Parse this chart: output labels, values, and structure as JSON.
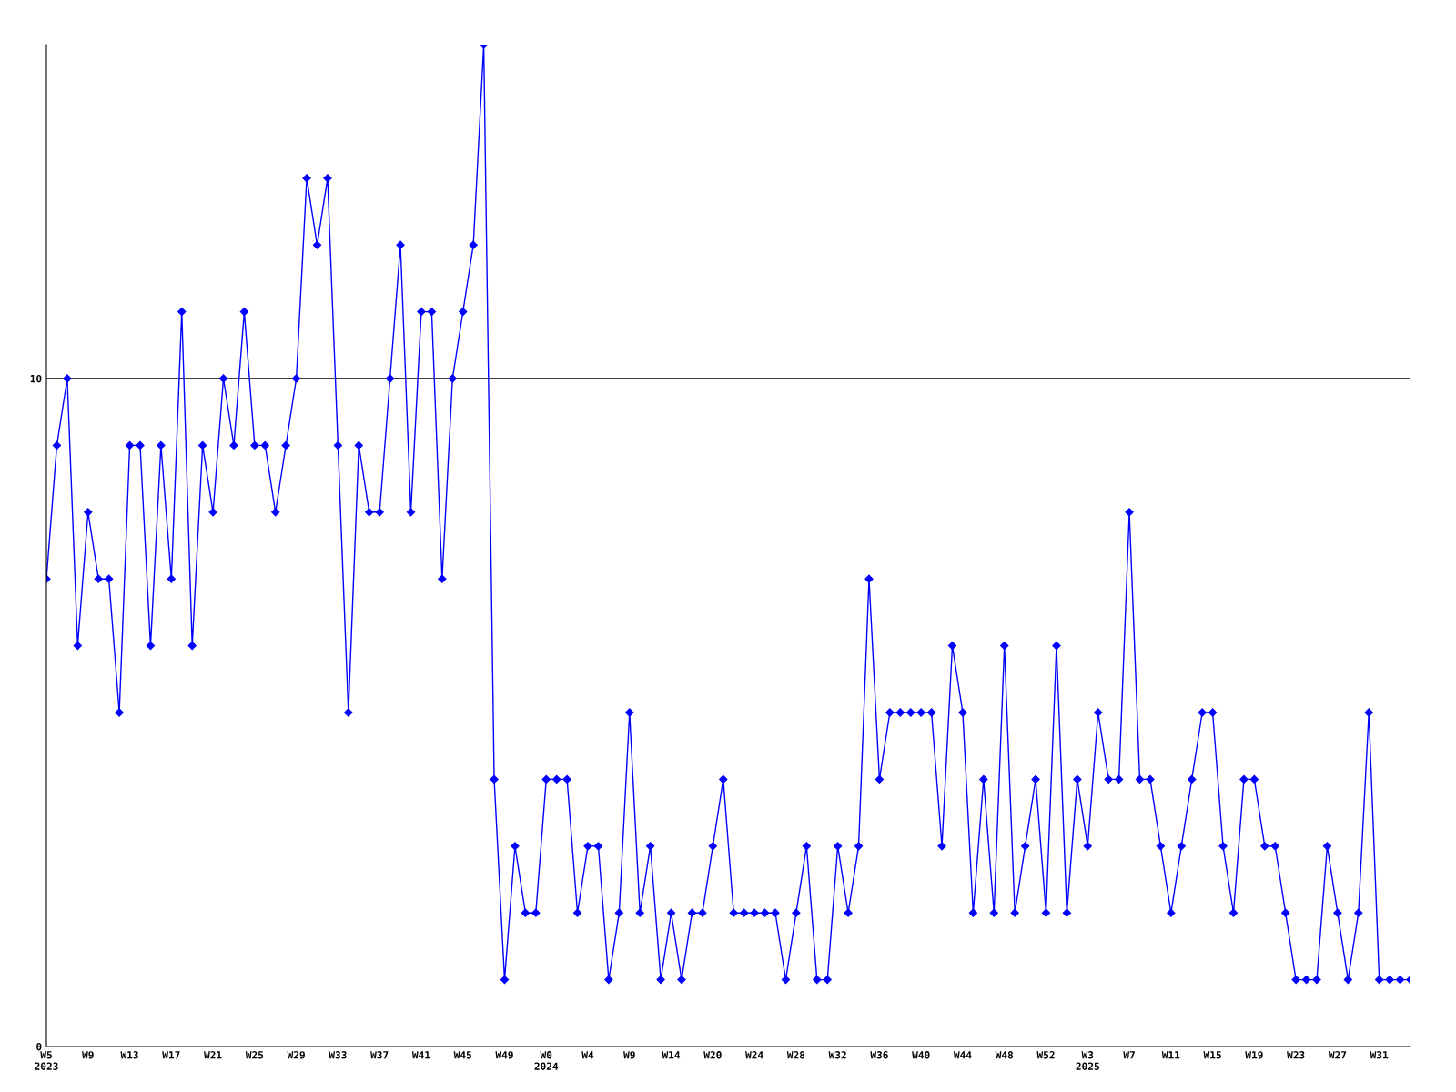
{
  "chart_data": {
    "type": "line",
    "categories": [
      "W5\n2023",
      null,
      null,
      null,
      "W9",
      null,
      null,
      null,
      "W13",
      null,
      null,
      null,
      "W17",
      null,
      null,
      null,
      "W21",
      null,
      null,
      null,
      "W25",
      null,
      null,
      null,
      "W29",
      null,
      null,
      null,
      "W33",
      null,
      null,
      null,
      "W37",
      null,
      null,
      null,
      "W41",
      null,
      null,
      null,
      "W45",
      null,
      null,
      null,
      "W49",
      null,
      null,
      null,
      "W0\n2024",
      null,
      null,
      null,
      "W4",
      null,
      null,
      null,
      "W9",
      null,
      null,
      null,
      "W14",
      null,
      null,
      null,
      "W20",
      null,
      null,
      null,
      "W24",
      null,
      null,
      null,
      "W28",
      null,
      null,
      null,
      "W32",
      null,
      null,
      null,
      "W36",
      null,
      null,
      null,
      "W40",
      null,
      null,
      null,
      "W44",
      null,
      null,
      null,
      "W48",
      null,
      null,
      null,
      "W52",
      null,
      null,
      null,
      "W3\n2025",
      null,
      null,
      null,
      "W7",
      null,
      null,
      null,
      "W11",
      null,
      null,
      null,
      "W15",
      null,
      null,
      null,
      "W19",
      null,
      null,
      null,
      "W23",
      null,
      null,
      null,
      "W27",
      null,
      null,
      null,
      "W31",
      null,
      null,
      null
    ],
    "series": [
      {
        "color": "#0000ff",
        "values": [
          7,
          9,
          10,
          6,
          8,
          7,
          7,
          5,
          9,
          9,
          6,
          9,
          7,
          11,
          6,
          9,
          8,
          10,
          9,
          11,
          9,
          9,
          8,
          9,
          10,
          13,
          12,
          13,
          9,
          5,
          9,
          8,
          8,
          10,
          12,
          8,
          11,
          11,
          7,
          10,
          11,
          12,
          15,
          4,
          1,
          3,
          2,
          2,
          4,
          4,
          4,
          2,
          3,
          3,
          1,
          2,
          5,
          2,
          3,
          1,
          2,
          1,
          2,
          2,
          3,
          4,
          2,
          2,
          2,
          2,
          2,
          1,
          2,
          3,
          1,
          1,
          3,
          2,
          3,
          7,
          4,
          5,
          5,
          5,
          5,
          5,
          3,
          6,
          5,
          2,
          4,
          2,
          6,
          2,
          3,
          4,
          2,
          6,
          2,
          4,
          3,
          5,
          4,
          4,
          8,
          4,
          4,
          3,
          2,
          3,
          4,
          5,
          5,
          3,
          2,
          4,
          4,
          3,
          3,
          2,
          1,
          1,
          1,
          3,
          2,
          1,
          2,
          5,
          1,
          1,
          1,
          1
        ]
      }
    ],
    "ylim": [
      0,
      15
    ],
    "yticks": [
      0,
      10
    ],
    "grid": "y",
    "marker": "diamond",
    "line_style": "solid"
  }
}
